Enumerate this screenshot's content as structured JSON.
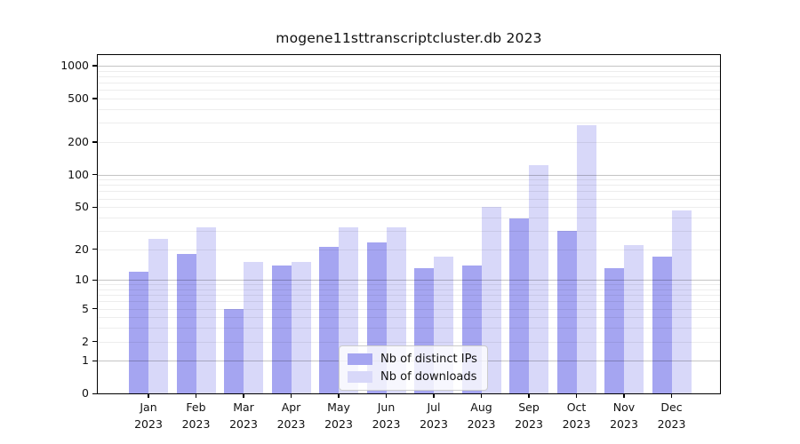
{
  "chart_data": {
    "type": "bar",
    "title": "mogene11sttranscriptcluster.db 2023",
    "x_categories": [
      "Jan",
      "Feb",
      "Mar",
      "Apr",
      "May",
      "Jun",
      "Jul",
      "Aug",
      "Sep",
      "Oct",
      "Nov",
      "Dec"
    ],
    "x_year": "2023",
    "series": [
      {
        "name": "Nb of distinct IPs",
        "color": "#a5a5f1",
        "values": [
          12,
          18,
          5,
          14,
          21,
          23,
          13,
          14,
          39,
          30,
          13,
          17
        ]
      },
      {
        "name": "Nb of downloads",
        "color": "#d8d8f9",
        "values": [
          25,
          32,
          15,
          15,
          32,
          32,
          17,
          50,
          122,
          285,
          22,
          46
        ]
      }
    ],
    "y_scale": "log(value+1)",
    "y_ticks": [
      0,
      1,
      2,
      5,
      10,
      20,
      50,
      100,
      200,
      500,
      1000
    ],
    "ylim": [
      0,
      1250
    ],
    "grid": "horizontal, log minor + major decades",
    "legend_position": "lower center",
    "colors": {
      "axis": "#000000",
      "grid_major": "#c5c5c5",
      "grid_minor": "#ededed",
      "background": "#ffffff"
    }
  }
}
